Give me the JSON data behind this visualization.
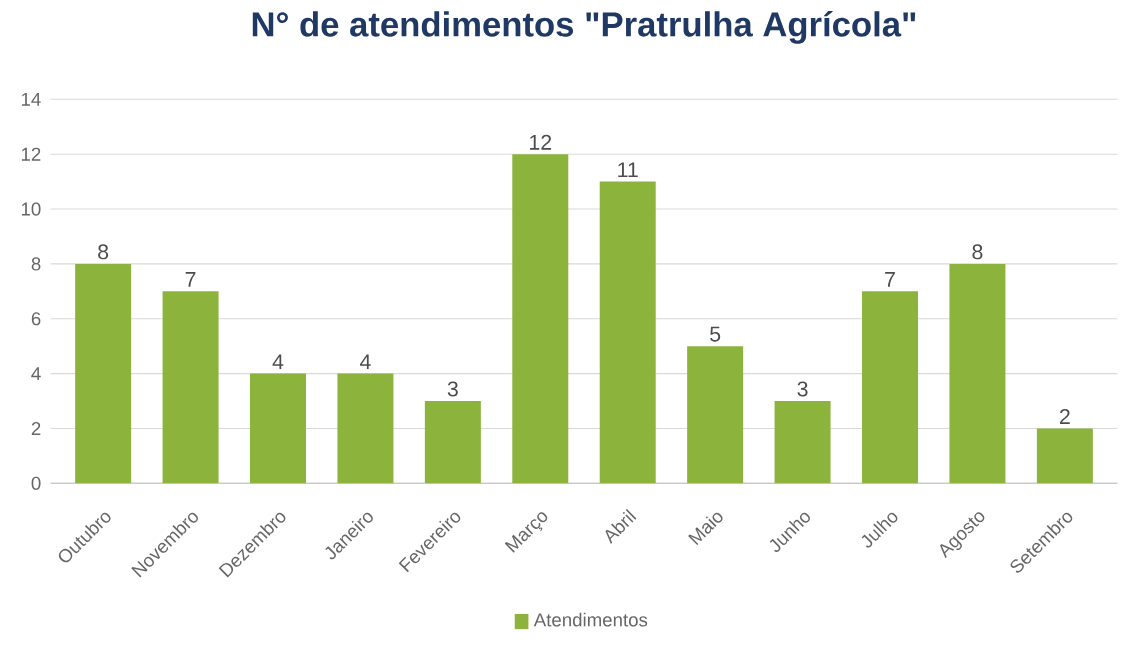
{
  "chart_data": {
    "type": "bar",
    "title": "N° de atendimentos \"Pratrulha Agrícola\"",
    "categories": [
      "Outubro",
      "Novembro",
      "Dezembro",
      "Janeiro",
      "Fevereiro",
      "Março",
      "Abril",
      "Maio",
      "Junho",
      "Julho",
      "Agosto",
      "Setembro"
    ],
    "series": [
      {
        "name": "Atendimentos",
        "color": "#8cb43c",
        "values": [
          8,
          7,
          4,
          4,
          3,
          12,
          11,
          5,
          3,
          7,
          8,
          2
        ]
      }
    ],
    "ylim": [
      0,
      14
    ],
    "yticks": [
      0,
      2,
      4,
      6,
      8,
      10,
      12,
      14
    ],
    "grid": "y",
    "legend": "bottom",
    "data_labels": true
  }
}
